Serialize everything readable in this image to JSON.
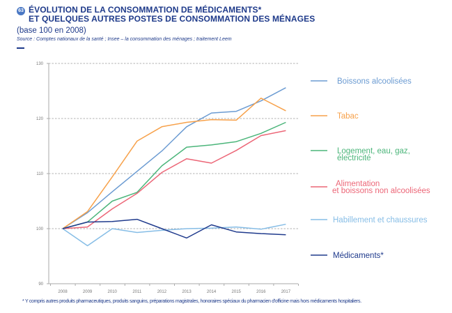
{
  "header": {
    "badge": "63",
    "title_line1": "ÉVOLUTION DE LA CONSOMMATION DE MÉDICAMENTS*",
    "title_line2": "ET QUELQUES AUTRES POSTES DE CONSOMMATION DES MÉNAGES",
    "subtitle": "(base 100 en 2008)",
    "source": "Source : Comptes nationaux de la santé ; Insee – la consommation des ménages ; traitement Leem",
    "accent_color": "#1e3a8a"
  },
  "footnote": "* Y compris autres produits pharmaceutiques, produits sanguins, préparations magistrales, honoraires spéciaux du pharmacien d'officine mais hors médicaments hospitaliers.",
  "chart_data": {
    "type": "line",
    "title": "ÉVOLUTION DE LA CONSOMMATION DE MÉDICAMENTS* ET QUELQUES AUTRES POSTES DE CONSOMMATION DES MÉNAGES",
    "subtitle": "(base 100 en 2008)",
    "xlabel": "",
    "ylabel": "",
    "x": [
      "2008",
      "2009",
      "2010",
      "2011",
      "2012",
      "2013",
      "2014",
      "2015",
      "2016",
      "2017"
    ],
    "ylim": [
      90,
      130
    ],
    "yticks": [
      "90",
      "100",
      "110",
      "120",
      "130"
    ],
    "grid": "horizontal dashed",
    "legend_position": "right",
    "series": [
      {
        "name": "Boissons alcoolisées",
        "label_lines": [
          "Boissons alcoolisées"
        ],
        "color": "#6b9bd2",
        "values": [
          100,
          102.9,
          106.7,
          110.4,
          114.1,
          118.5,
          121.0,
          121.3,
          123.2,
          125.6
        ]
      },
      {
        "name": "Tabac",
        "label_lines": [
          "Tabac"
        ],
        "color": "#f7a14a",
        "values": [
          100,
          103.1,
          109.4,
          115.9,
          118.5,
          119.3,
          119.8,
          119.7,
          123.7,
          121.4
        ]
      },
      {
        "name": "Logement, eau, gaz, électricité",
        "label_lines": [
          "Logement, eau, gaz,",
          "électricité"
        ],
        "color": "#4bb57a",
        "values": [
          100,
          101.2,
          105.0,
          106.6,
          111.4,
          114.8,
          115.2,
          115.8,
          117.3,
          119.3
        ]
      },
      {
        "name": "Alimentation et boissons non alcoolisées",
        "label_lines": [
          "Alimentation",
          "et boissons non alcoolisées"
        ],
        "color": "#ec6677",
        "values": [
          100,
          100.3,
          103.6,
          106.4,
          110.2,
          112.7,
          111.9,
          114.2,
          116.9,
          117.8
        ]
      },
      {
        "name": "Habillement et chaussures",
        "label_lines": [
          "Habillement et chaussures"
        ],
        "color": "#86bde6",
        "values": [
          100,
          96.9,
          100.0,
          99.3,
          99.7,
          100.0,
          100.1,
          100.3,
          99.9,
          100.8
        ]
      },
      {
        "name": "Médicaments*",
        "label_lines": [
          "Médicaments*"
        ],
        "color": "#1f3a8c",
        "values": [
          100,
          101.2,
          101.3,
          101.7,
          100.0,
          98.3,
          100.7,
          99.4,
          99.1,
          98.9
        ]
      }
    ]
  }
}
